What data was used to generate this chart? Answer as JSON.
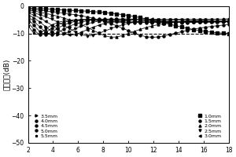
{
  "ylabel": "反射损耗(dB)",
  "xlim": [
    2,
    18
  ],
  "ylim": [
    -50,
    0
  ],
  "xticks": [
    2,
    4,
    6,
    8,
    10,
    12,
    14,
    16,
    18
  ],
  "yticks": [
    -50,
    -40,
    -30,
    -20,
    -10,
    0
  ],
  "dashed_line_y": -10,
  "thicknesses_left": [
    3.5,
    4.0,
    4.5,
    5.0,
    5.5
  ],
  "thicknesses_right": [
    1.0,
    1.5,
    2.0,
    2.5,
    3.0
  ],
  "freq_start": 2,
  "freq_end": 18,
  "freq_points": 800,
  "line_color": "#000000",
  "background_color": "#ffffff",
  "marker_styles_left": [
    ">",
    "o",
    "o",
    "o",
    "*"
  ],
  "marker_styles_right": [
    "s",
    "o",
    "^",
    "v",
    "<"
  ],
  "legend_fontsize": 4.5,
  "axis_fontsize": 6.5,
  "tick_fontsize": 5.5,
  "marker_freq_n": 35
}
